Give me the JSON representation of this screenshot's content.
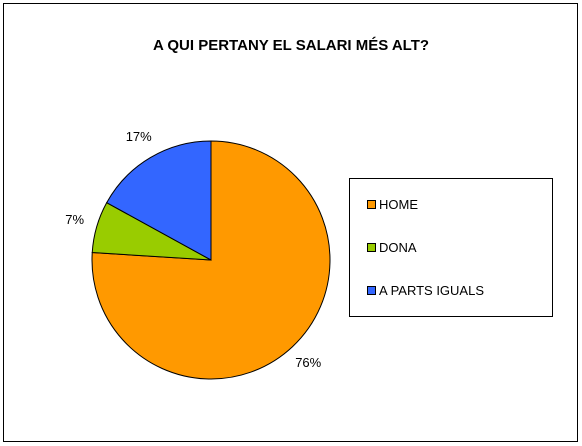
{
  "chart_data": {
    "type": "pie",
    "title": "A QUI PERTANY EL SALARI MÉS ALT?",
    "categories": [
      "HOME",
      "DONA",
      "A PARTS IGUALS"
    ],
    "values": [
      76,
      7,
      17
    ],
    "value_labels": [
      "76%",
      "7%",
      "17%"
    ],
    "colors": [
      "#ff9900",
      "#99cc00",
      "#3366ff"
    ],
    "legend": "right"
  }
}
